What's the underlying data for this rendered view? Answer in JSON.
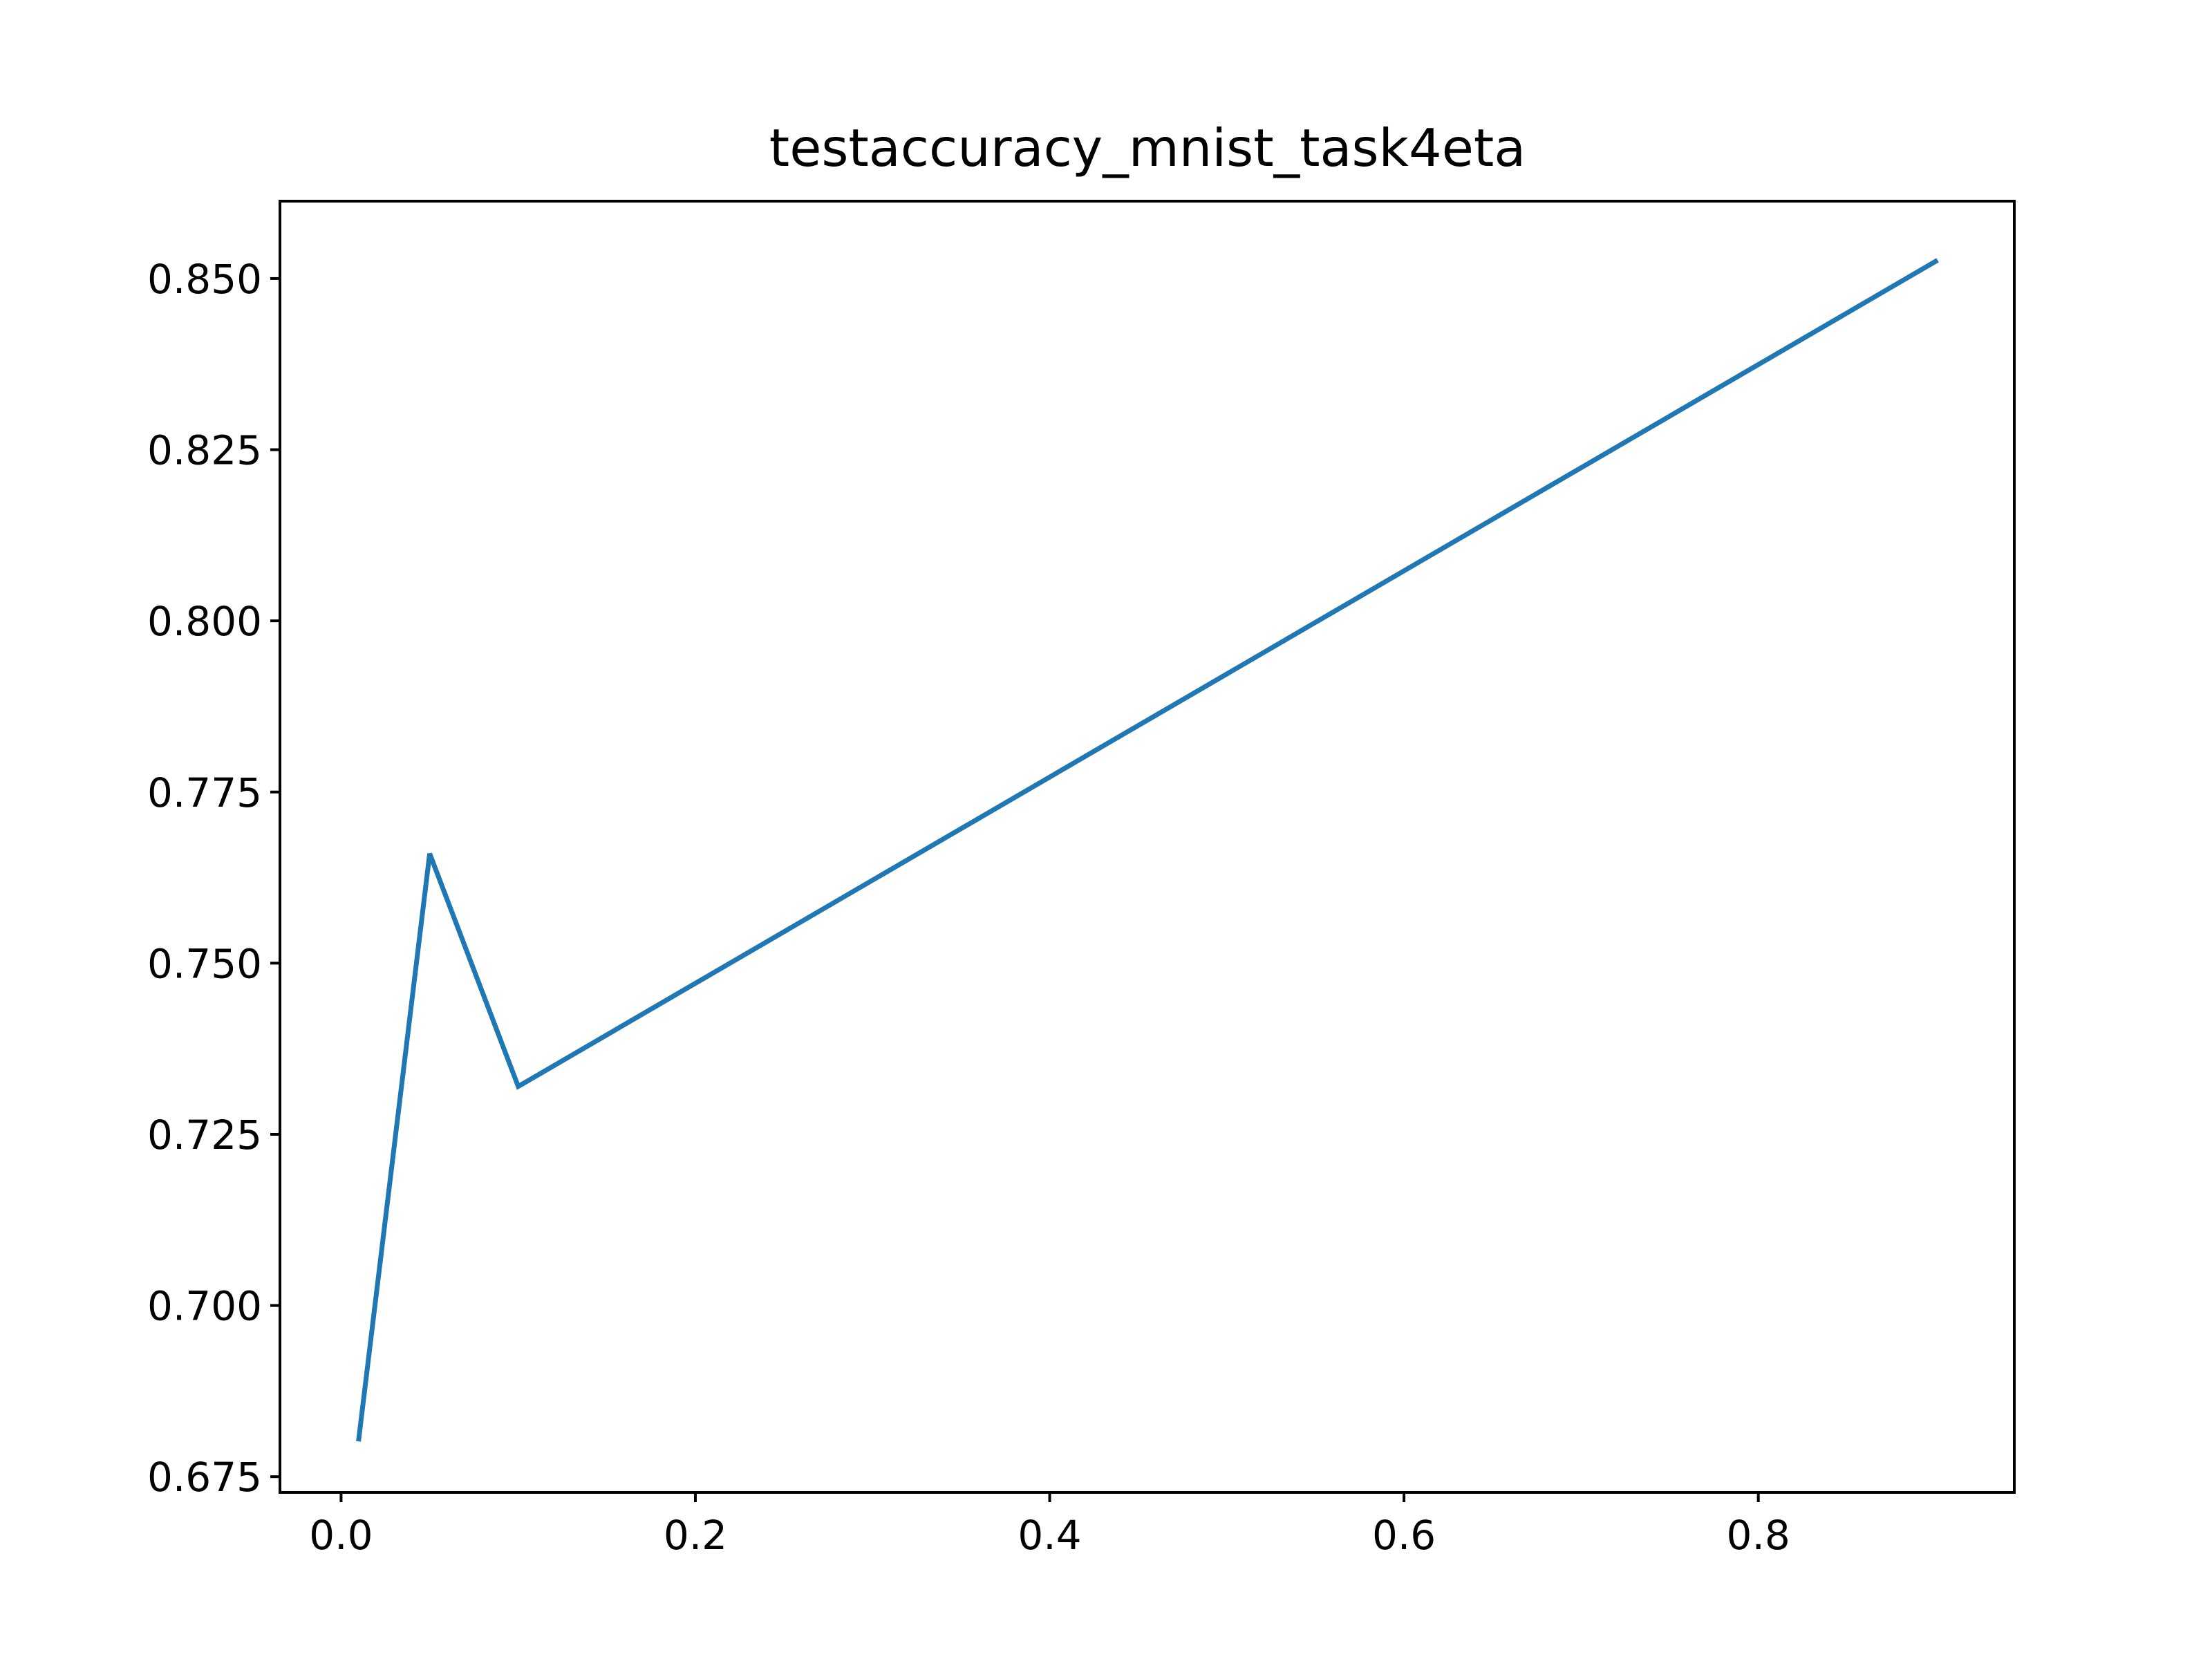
{
  "chart_data": {
    "type": "line",
    "title": "testaccuracy_mnist_task4eta",
    "xlabel": "",
    "ylabel": "",
    "x": [
      0.01,
      0.05,
      0.1,
      0.9
    ],
    "series": [
      {
        "values": [
          0.6805,
          0.766,
          0.732,
          0.8525
        ],
        "color": "#1f77b4"
      }
    ],
    "xlim": [
      -0.0345,
      0.9445
    ],
    "ylim": [
      0.6727,
      0.8613
    ],
    "xticks": [
      0.0,
      0.2,
      0.4,
      0.6,
      0.8
    ],
    "xtick_labels": [
      "0.0",
      "0.2",
      "0.4",
      "0.6",
      "0.8"
    ],
    "yticks": [
      0.675,
      0.7,
      0.725,
      0.75,
      0.775,
      0.8,
      0.825,
      0.85
    ],
    "ytick_labels": [
      "0.675",
      "0.700",
      "0.725",
      "0.750",
      "0.775",
      "0.800",
      "0.825",
      "0.850"
    ],
    "grid": false,
    "legend": "none"
  }
}
